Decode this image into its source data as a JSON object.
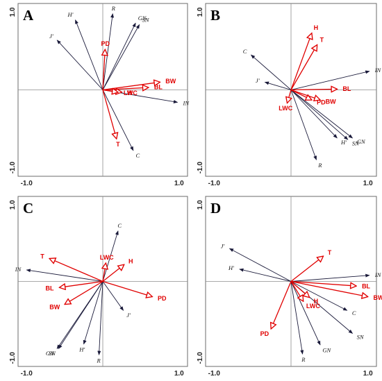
{
  "chart_data": [
    {
      "type": "biplot",
      "title": "A",
      "xlim": [
        -1.0,
        1.0
      ],
      "ylim": [
        -1.0,
        1.0
      ],
      "x_ticks": [
        "-1.0",
        "1.0"
      ],
      "y_ticks": [
        "1.0",
        "-1.0"
      ],
      "species_color": "#1a1a3a",
      "trait_color": "#e00000",
      "species_vectors": [
        {
          "label": "H′",
          "x": -0.36,
          "y": 0.9
        },
        {
          "label": "R",
          "x": 0.13,
          "y": 0.98
        },
        {
          "label": "GN",
          "x": 0.43,
          "y": 0.86
        },
        {
          "label": "SN",
          "x": 0.48,
          "y": 0.84
        },
        {
          "label": "J′",
          "x": -0.6,
          "y": 0.64
        },
        {
          "label": "IN",
          "x": 0.98,
          "y": -0.16
        },
        {
          "label": "C",
          "x": 0.4,
          "y": -0.78
        }
      ],
      "trait_vectors": [
        {
          "label": "PD",
          "x": 0.03,
          "y": 0.52
        },
        {
          "label": "BW",
          "x": 0.75,
          "y": 0.1
        },
        {
          "label": "BL",
          "x": 0.6,
          "y": 0.03
        },
        {
          "label": "H",
          "x": 0.25,
          "y": -0.03
        },
        {
          "label": "LWC",
          "x": 0.2,
          "y": -0.03
        },
        {
          "label": "T",
          "x": 0.18,
          "y": -0.63
        }
      ]
    },
    {
      "type": "biplot",
      "title": "B",
      "xlim": [
        -1.0,
        1.0
      ],
      "ylim": [
        -1.0,
        1.0
      ],
      "x_ticks": [
        "-1.0",
        "1.0"
      ],
      "y_ticks": [
        "1.0",
        "-1.0"
      ],
      "species_color": "#1a1a3a",
      "trait_color": "#e00000",
      "species_vectors": [
        {
          "label": "C",
          "x": -0.52,
          "y": 0.45
        },
        {
          "label": "J′",
          "x": -0.34,
          "y": 0.1
        },
        {
          "label": "IN",
          "x": 1.02,
          "y": 0.24
        },
        {
          "label": "H′",
          "x": 0.6,
          "y": -0.62
        },
        {
          "label": "SN",
          "x": 0.74,
          "y": -0.64
        },
        {
          "label": "GN",
          "x": 0.8,
          "y": -0.62
        },
        {
          "label": "R",
          "x": 0.33,
          "y": -0.9
        }
      ],
      "trait_vectors": [
        {
          "label": "H",
          "x": 0.27,
          "y": 0.73
        },
        {
          "label": "T",
          "x": 0.34,
          "y": 0.58
        },
        {
          "label": "BL",
          "x": 0.6,
          "y": 0.01
        },
        {
          "label": "LWC",
          "x": -0.05,
          "y": -0.17
        },
        {
          "label": "PD",
          "x": 0.27,
          "y": -0.13
        },
        {
          "label": "BW",
          "x": 0.38,
          "y": -0.13
        }
      ]
    },
    {
      "type": "biplot",
      "title": "C",
      "xlim": [
        -1.0,
        1.0
      ],
      "ylim": [
        -1.0,
        1.0
      ],
      "x_ticks": [
        "-1.0",
        "1.0"
      ],
      "y_ticks": [
        "1.0",
        "-1.0"
      ],
      "species_color": "#1a1a3a",
      "trait_color": "#e00000",
      "species_vectors": [
        {
          "label": "C",
          "x": 0.2,
          "y": 0.66
        },
        {
          "label": "IN",
          "x": -1.0,
          "y": 0.15
        },
        {
          "label": "J′",
          "x": 0.27,
          "y": -0.38
        },
        {
          "label": "GN",
          "x": -0.6,
          "y": -0.88
        },
        {
          "label": "SN",
          "x": -0.58,
          "y": -0.88
        },
        {
          "label": "H′",
          "x": -0.25,
          "y": -0.82
        },
        {
          "label": "R",
          "x": -0.05,
          "y": -0.96
        }
      ],
      "trait_vectors": [
        {
          "label": "T",
          "x": -0.7,
          "y": 0.3
        },
        {
          "label": "LWC",
          "x": 0.04,
          "y": 0.24
        },
        {
          "label": "H",
          "x": 0.28,
          "y": 0.22
        },
        {
          "label": "PD",
          "x": 0.65,
          "y": -0.2
        },
        {
          "label": "BL",
          "x": -0.57,
          "y": -0.08
        },
        {
          "label": "BW",
          "x": -0.5,
          "y": -0.3
        }
      ]
    },
    {
      "type": "biplot",
      "title": "D",
      "xlim": [
        -1.0,
        1.0
      ],
      "ylim": [
        -1.0,
        1.0
      ],
      "x_ticks": [
        "-1.0",
        "1.0"
      ],
      "y_ticks": [
        "1.0",
        "-1.0"
      ],
      "species_color": "#1a1a3a",
      "trait_color": "#e00000",
      "species_vectors": [
        {
          "label": "J′",
          "x": -0.8,
          "y": 0.43
        },
        {
          "label": "H′",
          "x": -0.67,
          "y": 0.16
        },
        {
          "label": "IN",
          "x": 1.02,
          "y": 0.08
        },
        {
          "label": "C",
          "x": 0.73,
          "y": -0.38
        },
        {
          "label": "SN",
          "x": 0.8,
          "y": -0.68
        },
        {
          "label": "GN",
          "x": 0.38,
          "y": -0.83
        },
        {
          "label": "R",
          "x": 0.15,
          "y": -0.95
        }
      ],
      "trait_vectors": [
        {
          "label": "T",
          "x": 0.42,
          "y": 0.33
        },
        {
          "label": "BL",
          "x": 0.85,
          "y": -0.06
        },
        {
          "label": "BW",
          "x": 1.0,
          "y": -0.2
        },
        {
          "label": "H",
          "x": 0.24,
          "y": -0.21
        },
        {
          "label": "LWC",
          "x": 0.16,
          "y": -0.26
        },
        {
          "label": "PD",
          "x": -0.26,
          "y": -0.62
        }
      ]
    }
  ]
}
